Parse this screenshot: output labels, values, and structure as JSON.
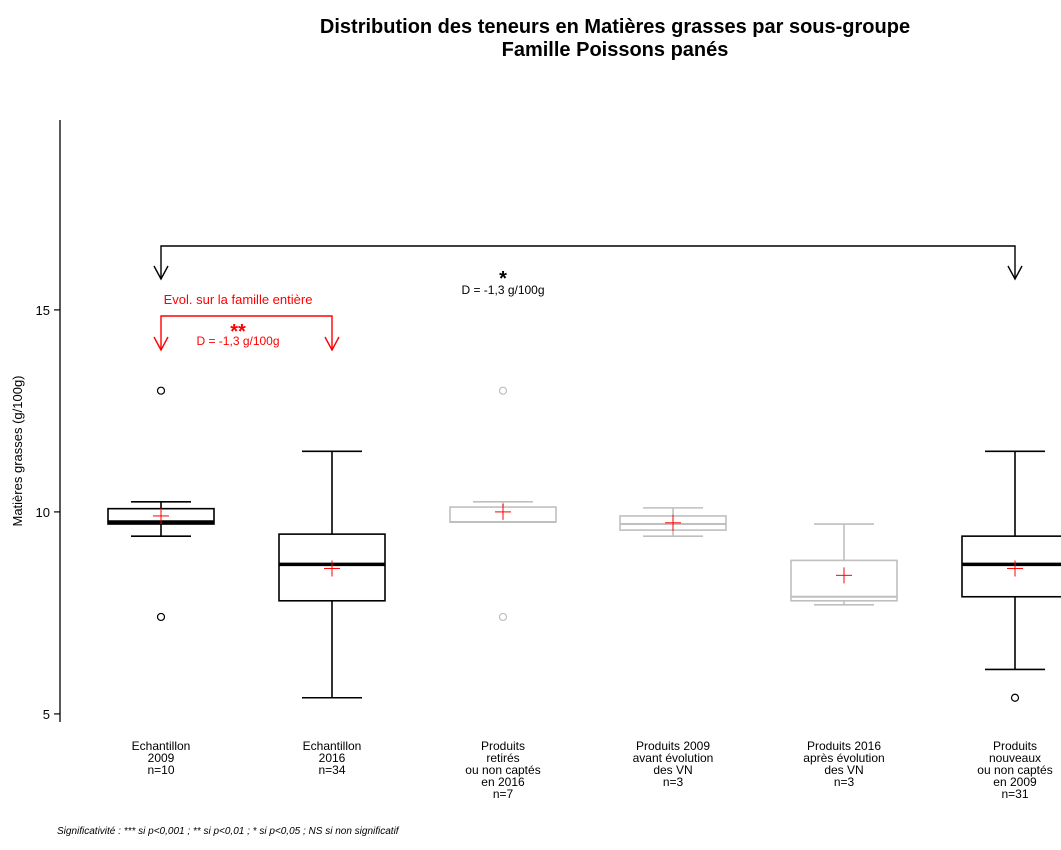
{
  "chart_data": {
    "type": "boxplot",
    "title": "Distribution des teneurs en Matières grasses par sous-groupe",
    "subtitle": "Famille Poissons panés",
    "ylabel": "Matières grasses (g/100g)",
    "ylim": [
      4.8,
      19.7
    ],
    "yticks": [
      5,
      10,
      15
    ],
    "categories": [
      {
        "lines": [
          "Echantillon",
          "2009",
          "n=10"
        ],
        "color": "#000000",
        "median_bold": true,
        "whisker_low": 9.4,
        "q1": 9.7,
        "median": 9.75,
        "q3": 10.08,
        "whisker_high": 10.25,
        "mean": 9.9,
        "outliers": [
          13.0,
          7.4
        ]
      },
      {
        "lines": [
          "Echantillon",
          "2016",
          "n=34"
        ],
        "color": "#000000",
        "median_bold": true,
        "whisker_low": 5.4,
        "q1": 7.8,
        "median": 8.7,
        "q3": 9.45,
        "whisker_high": 11.5,
        "mean": 8.6,
        "outliers": []
      },
      {
        "lines": [
          "Produits",
          "retirés",
          "ou non captés",
          "en 2016",
          "n=7"
        ],
        "color": "#bfbfbf",
        "median_bold": false,
        "whisker_low": 9.75,
        "q1": 9.75,
        "median": 9.75,
        "q3": 10.12,
        "whisker_high": 10.25,
        "mean": 10.0,
        "outliers": [
          13.0,
          7.4
        ]
      },
      {
        "lines": [
          "Produits 2009",
          "avant évolution",
          "des VN",
          "n=3"
        ],
        "color": "#bfbfbf",
        "median_bold": false,
        "whisker_low": 9.4,
        "q1": 9.55,
        "median": 9.7,
        "q3": 9.9,
        "whisker_high": 10.1,
        "mean": 9.73,
        "outliers": []
      },
      {
        "lines": [
          "Produits 2016",
          "après évolution",
          "des VN",
          "n=3"
        ],
        "color": "#bfbfbf",
        "median_bold": false,
        "whisker_low": 7.7,
        "q1": 7.8,
        "median": 7.9,
        "q3": 8.8,
        "whisker_high": 9.7,
        "mean": 8.43,
        "outliers": []
      },
      {
        "lines": [
          "Produits",
          "nouveaux",
          "ou non captés",
          "en 2009",
          "n=31"
        ],
        "color": "#000000",
        "median_bold": true,
        "whisker_low": 6.1,
        "q1": 7.9,
        "median": 8.7,
        "q3": 9.4,
        "whisker_high": 11.5,
        "mean": 8.6,
        "outliers": [
          5.4
        ]
      }
    ],
    "annotations": {
      "global": {
        "stars": "*",
        "text": "D = -1,3 g/100g",
        "from": 0,
        "to": 5,
        "color": "#000000"
      },
      "family": {
        "label": "Evol. sur la famille entière",
        "stars": "**",
        "text": "D = -1,3 g/100g",
        "from": 0,
        "to": 1,
        "color": "#ff0000"
      }
    },
    "mean_marker_color": "#ff0000",
    "footnote": "Significativité : *** si p<0,001 ; ** si p<0,01 ; * si p<0,05 ; NS si non significatif"
  }
}
